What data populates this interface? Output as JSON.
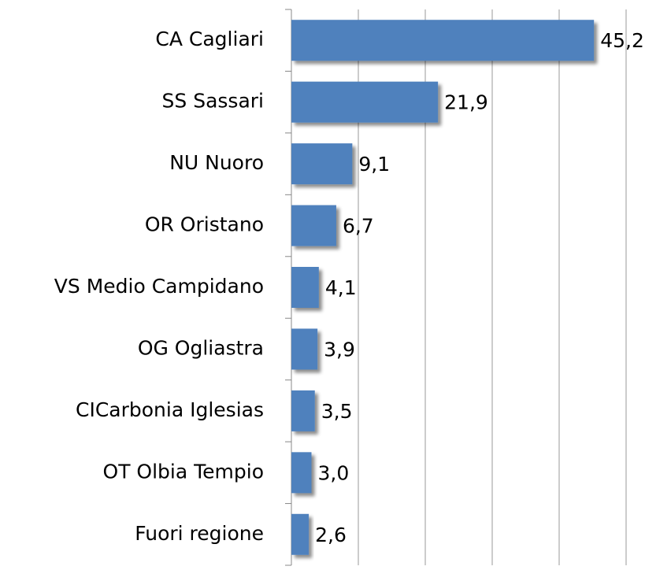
{
  "chart_data": {
    "type": "hbar",
    "categories": [
      "CA Cagliari",
      "SS Sassari",
      "NU Nuoro",
      "OR Oristano",
      "VS Medio Campidano",
      "OG Ogliastra",
      "CICarbonia Iglesias",
      "OT Olbia Tempio",
      "Fuori regione"
    ],
    "values": [
      45.2,
      21.9,
      9.1,
      6.7,
      4.1,
      3.9,
      3.5,
      3.0,
      2.6
    ],
    "value_labels": [
      "45,2",
      "21,9",
      "9,1",
      "6,7",
      "4,1",
      "3,9",
      "3,5",
      "3,0",
      "2,6"
    ],
    "color": "#4f81bd",
    "xlim": [
      0,
      50
    ],
    "xticks": [
      0,
      10,
      20,
      30,
      40,
      50
    ],
    "grid": true
  }
}
